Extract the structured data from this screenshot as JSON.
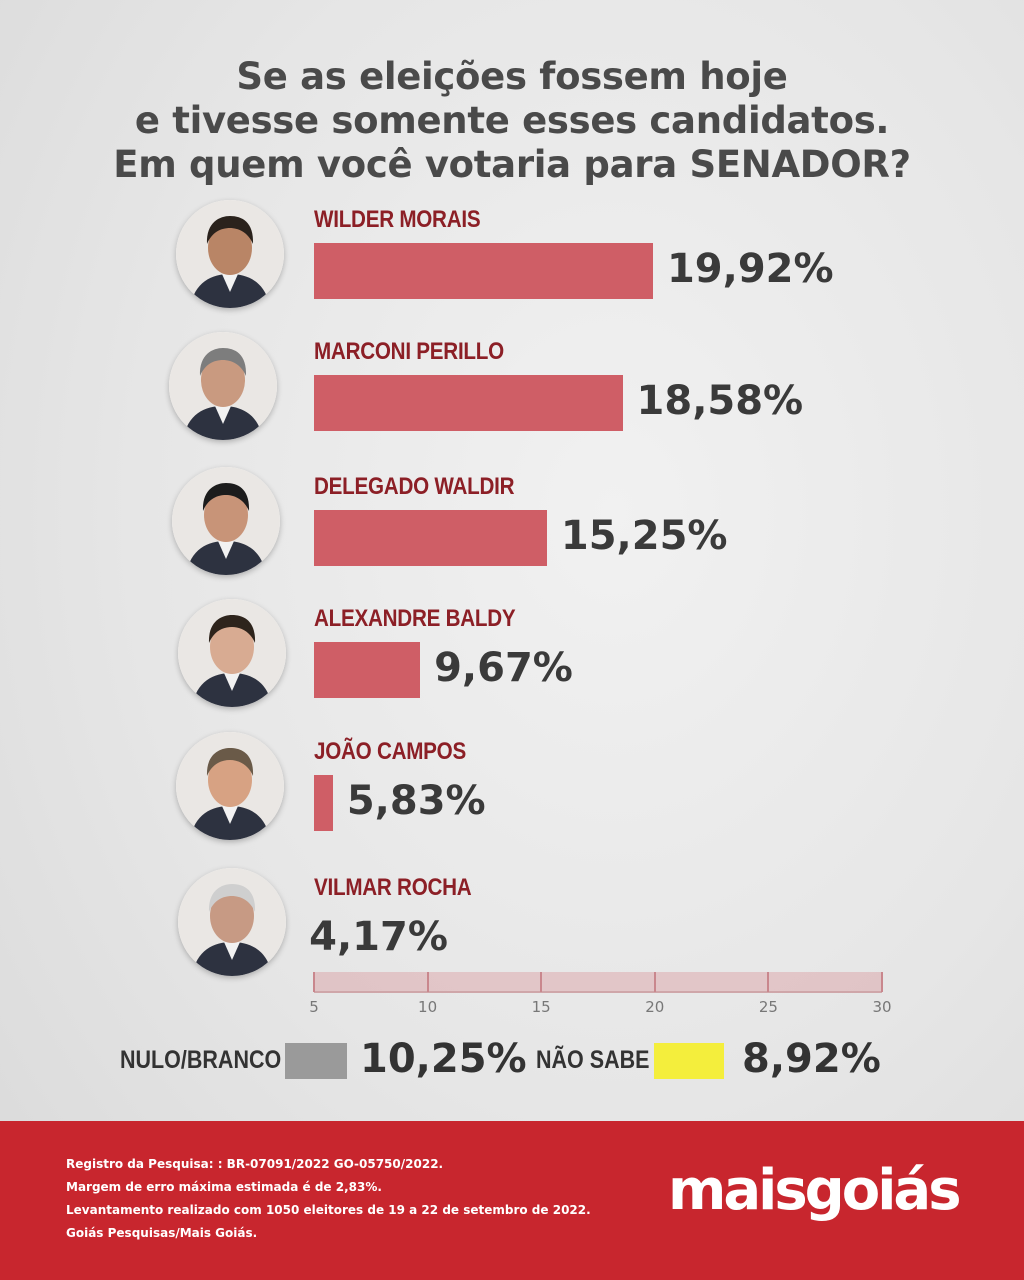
{
  "chart_data": {
    "type": "bar",
    "orientation": "horizontal",
    "title": [
      "Se as eleições fossem hoje",
      "e tivesse somente esses candidatos.",
      "Em quem você votaria para SENADOR?"
    ],
    "categories": [
      "WILDER MORAIS",
      "MARCONI PERILLO",
      "DELEGADO WALDIR",
      "ALEXANDRE BALDY",
      "JOÃO CAMPOS",
      "VILMAR ROCHA"
    ],
    "values": [
      19.92,
      18.58,
      15.25,
      9.67,
      5.83,
      4.17
    ],
    "value_labels": [
      "19,92%",
      "18,58%",
      "15,25%",
      "9,67%",
      "5,83%",
      "4,17%"
    ],
    "xlim": [
      5,
      30
    ],
    "xticks": [
      5,
      10,
      15,
      20,
      25,
      30
    ],
    "bar_color": "#cf5e66",
    "label_color": "#8c1f26",
    "extra": [
      {
        "label": "NULO/BRANCO",
        "value": 10.25,
        "value_label": "10,25%",
        "color": "#9a9a9a"
      },
      {
        "label": "NÃO SABE",
        "value": 8.92,
        "value_label": "8,92%",
        "color": "#f4ee3c"
      }
    ]
  },
  "footer": {
    "lines": [
      "Registro da Pesquisa: : BR-07091/2022 GO-05750/2022.",
      "Margem de erro máxima estimada é de 2,83%.",
      "Levantamento realizado com 1050 eleitores de 19 a 22 de setembro de 2022.",
      "Goiás Pesquisas/Mais Goiás."
    ],
    "logo": "maisgoiás",
    "background_color": "#c8262e"
  },
  "icons": [
    "candidate-photo-icon"
  ]
}
